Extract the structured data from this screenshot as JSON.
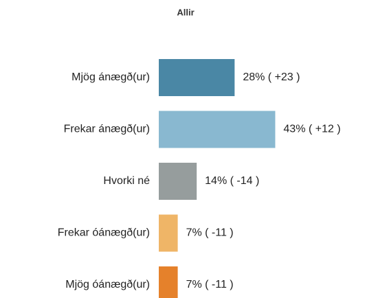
{
  "chart_data": {
    "type": "barh",
    "title": "Allir",
    "categories": [
      "Mjög ánægð(ur)",
      "Frekar ánægð(ur)",
      "Hvorki né",
      "Frekar óánægð(ur)",
      "Mjög óánægð(ur)"
    ],
    "values": [
      28,
      43,
      14,
      7,
      7
    ],
    "value_labels": [
      "28% ( +23 )",
      "43% ( +12 )",
      "14% ( -14 )",
      "7% ( -11 )",
      "7% ( -11 )"
    ],
    "colors": [
      "#4a87a5",
      "#89b8d0",
      "#969d9d",
      "#efb567",
      "#e5812b"
    ]
  }
}
